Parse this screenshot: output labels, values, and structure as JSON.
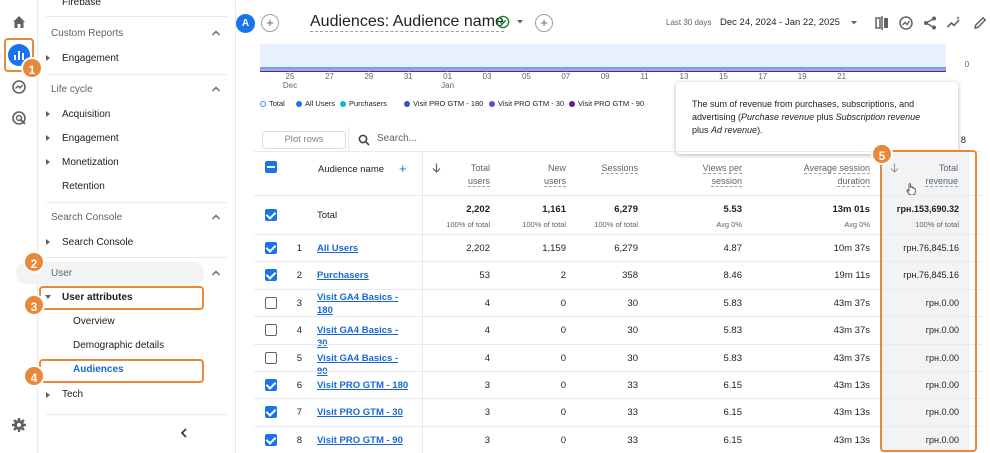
{
  "sidebar": {
    "top_item": "Firebase",
    "custom_reports": "Custom Reports",
    "engagement_top": "Engagement",
    "lifecycle": "Life cycle",
    "acquisition": "Acquisition",
    "engagement": "Engagement",
    "monetization": "Monetization",
    "retention": "Retention",
    "search_console_section": "Search Console",
    "search_console_item": "Search Console",
    "user": "User",
    "user_attributes": "User attributes",
    "overview": "Overview",
    "demographic": "Demographic details",
    "audiences": "Audiences",
    "tech": "Tech"
  },
  "badges": [
    "1",
    "2",
    "3",
    "4",
    "5"
  ],
  "header": {
    "avatar": "A",
    "plus": "+",
    "title": "Audiences: Audience name",
    "date_label": "Last 30 days",
    "date_range": "Dec 24, 2024 - Jan 22, 2025"
  },
  "chart_data": {
    "type": "line",
    "x": [
      "25",
      "27",
      "29",
      "31",
      "01",
      "03",
      "05",
      "07",
      "09",
      "11",
      "13",
      "15",
      "17",
      "19",
      "21"
    ],
    "x_sublabels": {
      "25": "Dec",
      "01": "Jan"
    },
    "y_right_label": "0",
    "series": [
      {
        "name": "Total",
        "color": "#4285f4"
      },
      {
        "name": "All Users",
        "color": "#1a73e8"
      },
      {
        "name": "Purchasers",
        "color": "#12b5cb"
      },
      {
        "name": "Visit PRO GTM - 180",
        "color": "#3c4dc4"
      },
      {
        "name": "Visit PRO GTM - 30",
        "color": "#6a47c8"
      },
      {
        "name": "Visit PRO GTM - 90",
        "color": "#6a1b9a"
      }
    ]
  },
  "tooltip": {
    "line1": "The sum of revenue from purchases, subscriptions, and",
    "line2a": "advertising (",
    "line2b": "Purchase revenue",
    "line2c": " plus ",
    "line2d": "Subscription revenue",
    "line3a": "plus ",
    "line3b": "Ad revenue",
    "line3c": ")."
  },
  "table": {
    "plot_rows": "Plot rows",
    "search_placeholder": "Search...",
    "page_suffix": "8",
    "headers": {
      "audience_name": "Audience name",
      "total_users_1": "Total",
      "total_users_2": "users",
      "new_users_1": "New",
      "new_users_2": "users",
      "sessions": "Sessions",
      "views_1": "Views per",
      "views_2": "session",
      "avg_1": "Average session",
      "avg_2": "duration",
      "rev_1": "Total",
      "rev_2": "revenue"
    },
    "total": {
      "label": "Total",
      "total_users": "2,202",
      "new_users": "1,161",
      "sessions": "6,279",
      "views": "5.53",
      "avg": "13m 01s",
      "revenue": "грн.153,690.32",
      "sub_total_users": "100% of total",
      "sub_new_users": "100% of total",
      "sub_sessions": "100% of total",
      "sub_views": "Avg 0%",
      "sub_avg": "Avg 0%",
      "sub_revenue": "100% of total"
    },
    "rows": [
      {
        "n": "1",
        "name": "All Users",
        "name2": "",
        "tu": "2,202",
        "nu": "1,159",
        "s": "6,279",
        "v": "4.87",
        "a": "10m 37s",
        "r": "грн.76,845.16"
      },
      {
        "n": "2",
        "name": "Purchasers",
        "name2": "",
        "tu": "53",
        "nu": "2",
        "s": "358",
        "v": "8.46",
        "a": "19m 11s",
        "r": "грн.76,845.16"
      },
      {
        "n": "3",
        "name": "Visit GA4 Basics -",
        "name2": "180",
        "tu": "4",
        "nu": "0",
        "s": "30",
        "v": "5.83",
        "a": "43m 37s",
        "r": "грн.0.00"
      },
      {
        "n": "4",
        "name": "Visit GA4 Basics - 30",
        "name2": "",
        "tu": "4",
        "nu": "0",
        "s": "30",
        "v": "5.83",
        "a": "43m 37s",
        "r": "грн.0.00"
      },
      {
        "n": "5",
        "name": "Visit GA4 Basics - 90",
        "name2": "",
        "tu": "4",
        "nu": "0",
        "s": "30",
        "v": "5.83",
        "a": "43m 37s",
        "r": "грн.0.00"
      },
      {
        "n": "6",
        "name": "Visit PRO GTM - 180",
        "name2": "",
        "tu": "3",
        "nu": "0",
        "s": "33",
        "v": "6.15",
        "a": "43m 13s",
        "r": "грн.0.00"
      },
      {
        "n": "7",
        "name": "Visit PRO GTM - 30",
        "name2": "",
        "tu": "3",
        "nu": "0",
        "s": "33",
        "v": "6.15",
        "a": "43m 13s",
        "r": "грн.0.00"
      },
      {
        "n": "8",
        "name": "Visit PRO GTM - 90",
        "name2": "",
        "tu": "3",
        "nu": "0",
        "s": "33",
        "v": "6.15",
        "a": "43m 13s",
        "r": "грн.0.00"
      }
    ]
  }
}
